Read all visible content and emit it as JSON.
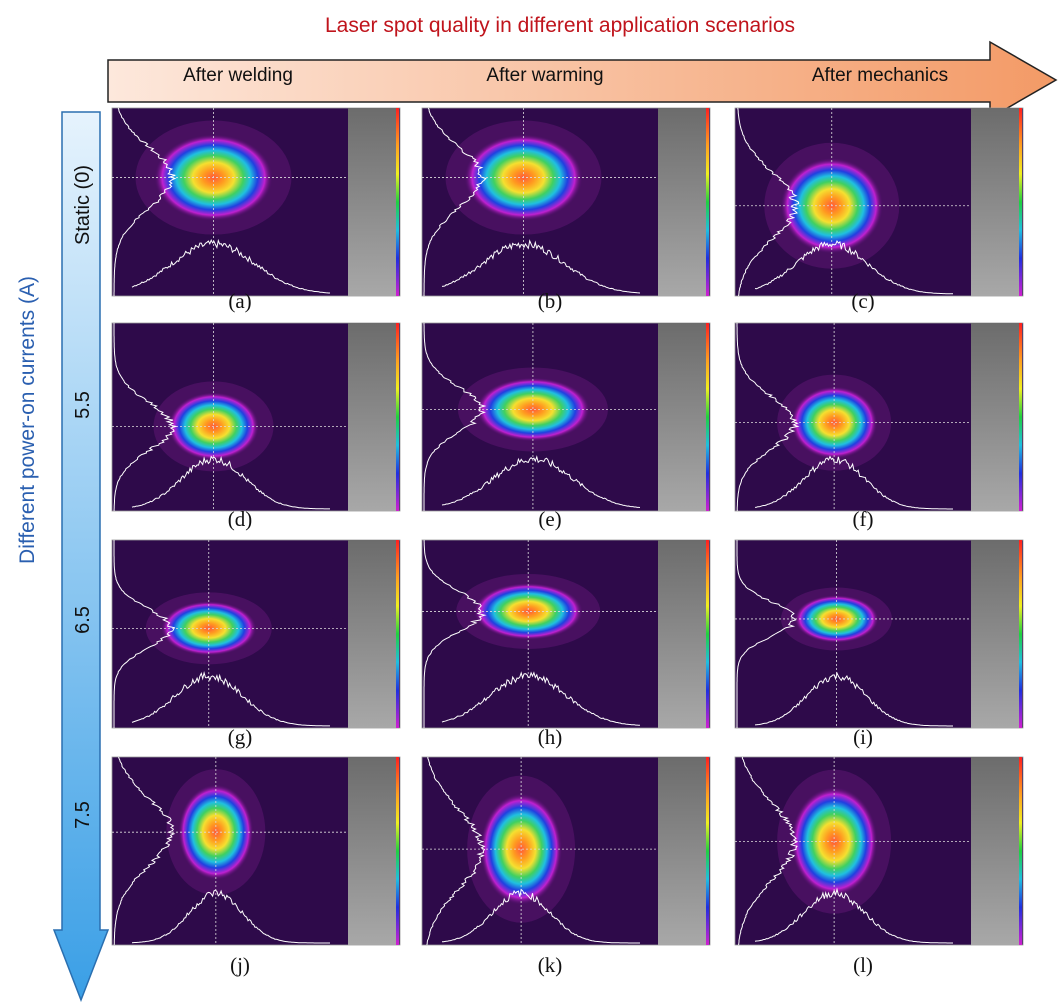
{
  "title": "Laser spot quality in different application scenarios",
  "columns": [
    "After welding",
    "After warming",
    "After mechanics"
  ],
  "row_axis_label": "Different power-on currents (A)",
  "rows": [
    "Static (0)",
    "5.5",
    "6.5",
    "7.5"
  ],
  "panels": [
    [
      "(a)",
      "(b)",
      "(c)"
    ],
    [
      "(d)",
      "(e)",
      "(f)"
    ],
    [
      "(g)",
      "(h)",
      "(i)"
    ],
    [
      "(j)",
      "(k)",
      "(l)"
    ]
  ]
}
